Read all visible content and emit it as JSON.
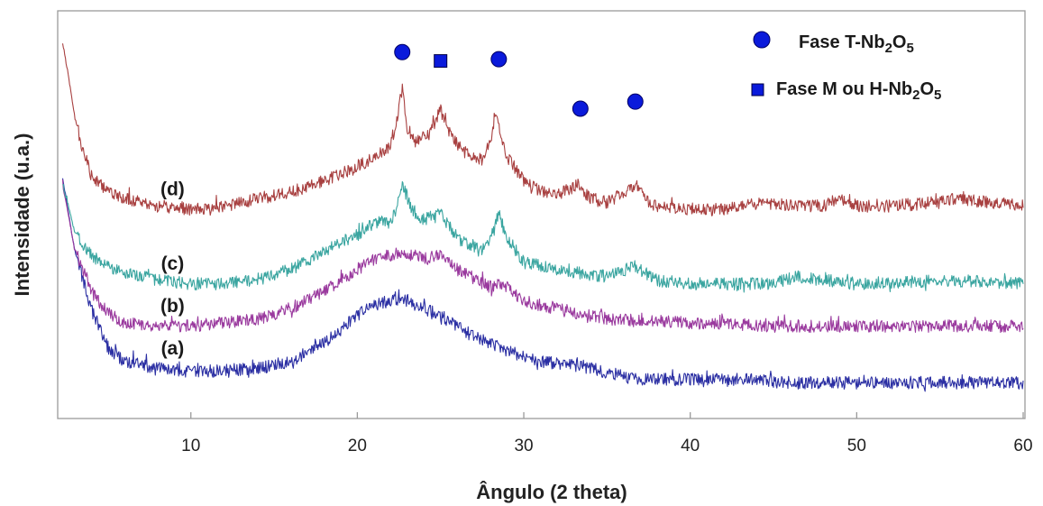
{
  "chart_data": {
    "type": "line",
    "title": "",
    "xlabel": "Ângulo (2 theta)",
    "ylabel": "Intensidade (u.a.)",
    "xlim": [
      2,
      60
    ],
    "ylim": [
      0,
      1
    ],
    "xticks": [
      10,
      20,
      30,
      40,
      50,
      60
    ],
    "grid": false,
    "series": [
      {
        "name": "(a)",
        "color": "#2b2fa3",
        "x": [
          2.3,
          3,
          4,
          5,
          6,
          8,
          10,
          12,
          14,
          16,
          18,
          20,
          21,
          22,
          22.7,
          23.5,
          25,
          27,
          29,
          31,
          33,
          35,
          37,
          40,
          43,
          46,
          50,
          55,
          60
        ],
        "y": [
          0.62,
          0.42,
          0.25,
          0.14,
          0.1,
          0.08,
          0.07,
          0.075,
          0.08,
          0.1,
          0.15,
          0.23,
          0.26,
          0.27,
          0.28,
          0.26,
          0.23,
          0.17,
          0.13,
          0.1,
          0.09,
          0.07,
          0.05,
          0.05,
          0.05,
          0.04,
          0.04,
          0.04,
          0.04
        ]
      },
      {
        "name": "(b)",
        "color": "#9a3a9e",
        "x": [
          2.3,
          3,
          4,
          5,
          6,
          8,
          10,
          12,
          14,
          16,
          18,
          20,
          21,
          22,
          22.7,
          24,
          25,
          26,
          28,
          28.7,
          30,
          32,
          35,
          40,
          45,
          50,
          55,
          60
        ],
        "y": [
          0.6,
          0.42,
          0.3,
          0.24,
          0.21,
          0.2,
          0.2,
          0.21,
          0.22,
          0.25,
          0.3,
          0.36,
          0.39,
          0.4,
          0.41,
          0.39,
          0.4,
          0.36,
          0.31,
          0.32,
          0.27,
          0.25,
          0.22,
          0.21,
          0.2,
          0.2,
          0.2,
          0.2
        ]
      },
      {
        "name": "(c)",
        "color": "#3aa5a0",
        "x": [
          2.3,
          3,
          4,
          5,
          6,
          8,
          10,
          12,
          14,
          16,
          18,
          20,
          21,
          22,
          22.3,
          22.7,
          23.3,
          24,
          25,
          26,
          27.5,
          28.2,
          28.5,
          28.9,
          30,
          32,
          35,
          36.7,
          38,
          40,
          45,
          46.3,
          50,
          55.4,
          60
        ],
        "y": [
          0.6,
          0.47,
          0.4,
          0.37,
          0.35,
          0.33,
          0.32,
          0.32,
          0.33,
          0.36,
          0.41,
          0.46,
          0.49,
          0.5,
          0.53,
          0.6,
          0.53,
          0.5,
          0.52,
          0.45,
          0.41,
          0.47,
          0.52,
          0.46,
          0.38,
          0.36,
          0.34,
          0.37,
          0.33,
          0.32,
          0.32,
          0.34,
          0.32,
          0.33,
          0.32
        ]
      },
      {
        "name": "(d)",
        "color": "#a84040",
        "x": [
          2.3,
          2.6,
          3,
          3.5,
          4,
          5,
          6,
          8,
          10,
          12,
          14,
          16,
          18,
          20,
          21,
          22,
          22.4,
          22.7,
          23,
          23.5,
          24.3,
          25,
          25.7,
          26.5,
          27.5,
          28,
          28.3,
          28.6,
          29,
          30,
          31,
          32,
          33.3,
          34,
          35,
          36.7,
          37.5,
          38,
          40,
          42,
          44.5,
          46,
          48,
          48.9,
          50,
          52,
          55,
          56,
          58,
          60
        ],
        "y": [
          1.0,
          0.92,
          0.8,
          0.7,
          0.63,
          0.58,
          0.56,
          0.54,
          0.53,
          0.54,
          0.56,
          0.58,
          0.61,
          0.65,
          0.68,
          0.71,
          0.78,
          0.87,
          0.76,
          0.72,
          0.74,
          0.81,
          0.73,
          0.69,
          0.67,
          0.72,
          0.81,
          0.75,
          0.68,
          0.61,
          0.58,
          0.57,
          0.6,
          0.56,
          0.55,
          0.6,
          0.55,
          0.54,
          0.53,
          0.53,
          0.55,
          0.54,
          0.54,
          0.56,
          0.54,
          0.54,
          0.55,
          0.56,
          0.55,
          0.54
        ]
      }
    ],
    "markers": [
      {
        "shape": "circle",
        "x": 22.7,
        "y": 0.975,
        "legend": "Fase T-Nb2O5"
      },
      {
        "shape": "square",
        "x": 25.0,
        "y": 0.95,
        "legend": "Fase M ou H-Nb2O5"
      },
      {
        "shape": "circle",
        "x": 28.5,
        "y": 0.955,
        "legend": "Fase T-Nb2O5"
      },
      {
        "shape": "circle",
        "x": 33.4,
        "y": 0.815,
        "legend": "Fase T-Nb2O5"
      },
      {
        "shape": "circle",
        "x": 36.7,
        "y": 0.835,
        "legend": "Fase T-Nb2O5"
      }
    ],
    "curve_labels": [
      {
        "text": "(d)",
        "x": 8.9,
        "y": 0.57
      },
      {
        "text": "(c)",
        "x": 8.9,
        "y": 0.36
      },
      {
        "text": "(b)",
        "x": 8.9,
        "y": 0.24
      },
      {
        "text": "(a)",
        "x": 8.9,
        "y": 0.12
      }
    ],
    "legend": {
      "placement": "top-right",
      "marker_color": "#0a1adb",
      "entries": [
        {
          "shape": "circle",
          "label_main": "Fase T-Nb",
          "sub1": "2",
          "mid": "O",
          "sub2": "5"
        },
        {
          "shape": "square",
          "label_main": "Fase M ou H-Nb",
          "sub1": "2",
          "mid": "O",
          "sub2": "5"
        }
      ]
    }
  }
}
